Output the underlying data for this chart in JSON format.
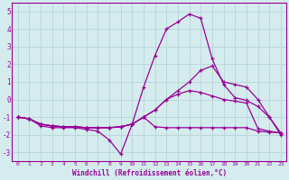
{
  "bg_color": "#d4ecee",
  "grid_color": "#b8d4d8",
  "line_color": "#990099",
  "xlabel": "Windchill (Refroidissement éolien,°C)",
  "xlim": [
    -0.5,
    23.5
  ],
  "ylim": [
    -3.5,
    5.5
  ],
  "yticks": [
    -3,
    -2,
    -1,
    0,
    1,
    2,
    3,
    4,
    5
  ],
  "xticks": [
    0,
    1,
    2,
    3,
    4,
    5,
    6,
    7,
    8,
    9,
    10,
    11,
    12,
    13,
    14,
    15,
    16,
    17,
    18,
    19,
    20,
    21,
    22,
    23
  ],
  "series": [
    [
      -1.0,
      -1.1,
      -1.5,
      -1.6,
      -1.6,
      -1.6,
      -1.7,
      -1.8,
      -2.3,
      -3.1,
      -1.4,
      0.7,
      2.5,
      4.0,
      4.4,
      4.85,
      4.6,
      2.3,
      0.85,
      0.1,
      -0.05,
      -0.4,
      -1.0,
      -2.0
    ],
    [
      -1.0,
      -1.1,
      -1.4,
      -1.5,
      -1.55,
      -1.55,
      -1.6,
      -1.6,
      -1.6,
      -1.55,
      -1.4,
      -1.0,
      -0.6,
      0.0,
      0.5,
      1.0,
      1.65,
      1.9,
      1.0,
      0.85,
      0.7,
      0.0,
      -1.0,
      -1.9
    ],
    [
      -1.0,
      -1.1,
      -1.4,
      -1.5,
      -1.55,
      -1.55,
      -1.6,
      -1.6,
      -1.6,
      -1.55,
      -1.4,
      -1.0,
      -0.6,
      0.0,
      0.3,
      0.5,
      0.4,
      0.2,
      0.0,
      -0.1,
      -0.2,
      -1.65,
      -1.8,
      -1.9
    ],
    [
      -1.0,
      -1.1,
      -1.4,
      -1.5,
      -1.55,
      -1.55,
      -1.6,
      -1.6,
      -1.6,
      -1.55,
      -1.4,
      -1.0,
      -1.55,
      -1.6,
      -1.6,
      -1.6,
      -1.6,
      -1.6,
      -1.6,
      -1.6,
      -1.6,
      -1.8,
      -1.85,
      -1.9
    ]
  ]
}
